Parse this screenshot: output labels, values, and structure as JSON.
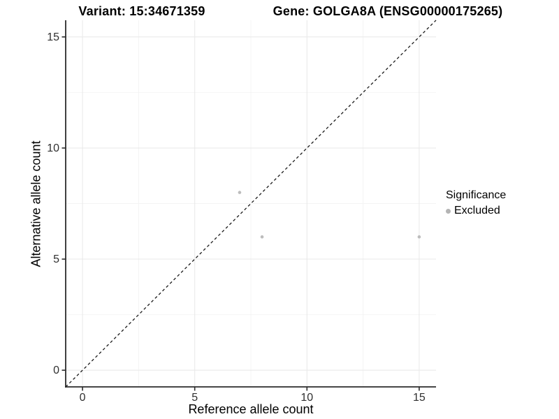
{
  "header": {
    "variant_title": "Variant: 15:34671359",
    "gene_title": "Gene: GOLGA8A (ENSG00000175265)"
  },
  "chart_data": {
    "type": "scatter",
    "xlabel": "Reference allele count",
    "ylabel": "Alternative allele count",
    "xlim": [
      -0.75,
      15.75
    ],
    "ylim": [
      -0.75,
      15.75
    ],
    "xticks": [
      0,
      5,
      10,
      15
    ],
    "yticks": [
      0,
      5,
      10,
      15
    ],
    "xminor": [
      2.5,
      7.5,
      12.5
    ],
    "yminor": [
      2.5,
      7.5,
      12.5
    ],
    "grid": "major+minor",
    "points": [
      {
        "x": 7,
        "y": 8,
        "significance": "Excluded"
      },
      {
        "x": 8,
        "y": 6,
        "significance": "Excluded"
      },
      {
        "x": 15,
        "y": 6,
        "significance": "Excluded"
      }
    ],
    "identity_line": {
      "style": "dashed",
      "slope": 1,
      "intercept": 0,
      "color": "#1a1a1a"
    },
    "colors": {
      "point": "#bdbdbd",
      "grid_major": "#e8e8e8",
      "grid_minor": "#f4f4f4",
      "axis_line": "#2b2b2b",
      "tick_text": "#303030"
    },
    "legend": {
      "title": "Significance",
      "position": "right",
      "items": [
        {
          "label": "Excluded",
          "color": "#b4b4b4"
        }
      ]
    }
  }
}
